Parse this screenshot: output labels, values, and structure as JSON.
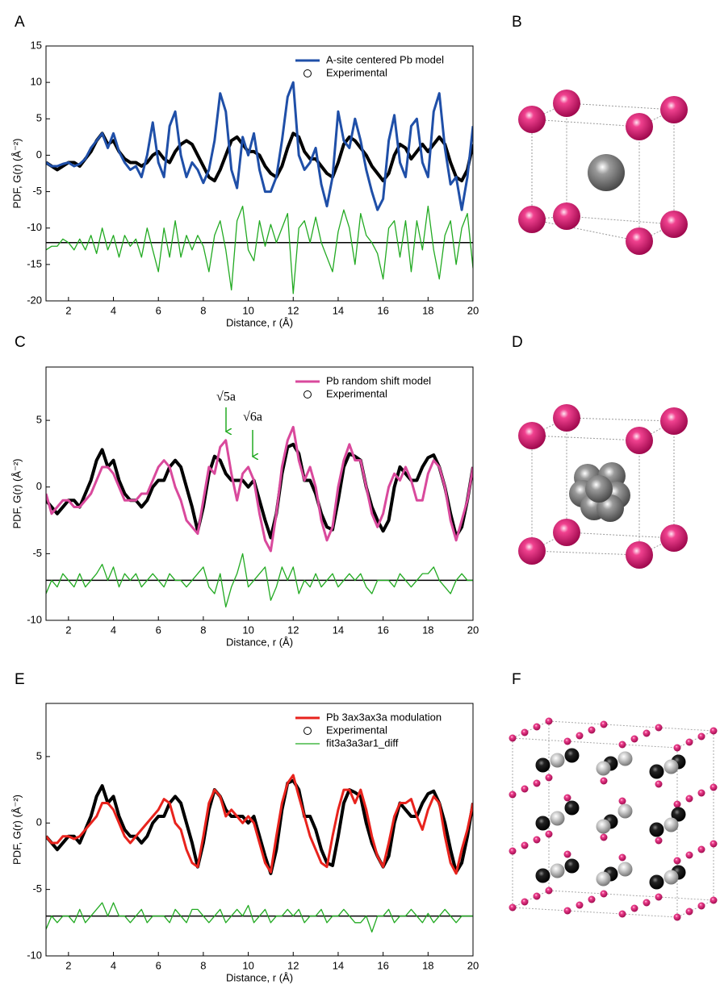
{
  "chart_data": [
    {
      "type": "line",
      "panel_label": "A",
      "y_label": "PDF, G(r) (Å⁻²)",
      "x_label": "Distance, r (Å)",
      "xlim": [
        1,
        20
      ],
      "xticks": [
        2,
        4,
        6,
        8,
        10,
        12,
        14,
        16,
        18,
        20
      ],
      "ylim": [
        -20,
        15
      ],
      "yticks": [
        -20,
        -15,
        -10,
        -5,
        0,
        5,
        10,
        15
      ],
      "legend": "upper right",
      "hline": -12,
      "x": [
        1,
        1.25,
        1.5,
        1.75,
        2,
        2.25,
        2.5,
        2.75,
        3,
        3.25,
        3.5,
        3.75,
        4,
        4.25,
        4.5,
        4.75,
        5,
        5.25,
        5.5,
        5.75,
        6,
        6.25,
        6.5,
        6.75,
        7,
        7.25,
        7.5,
        7.75,
        8,
        8.25,
        8.5,
        8.75,
        9,
        9.25,
        9.5,
        9.75,
        10,
        10.25,
        10.5,
        10.75,
        11,
        11.25,
        11.5,
        11.75,
        12,
        12.25,
        12.5,
        12.75,
        13,
        13.25,
        13.5,
        13.75,
        14,
        14.25,
        14.5,
        14.75,
        15,
        15.25,
        15.5,
        15.75,
        16,
        16.25,
        16.5,
        16.75,
        17,
        17.25,
        17.5,
        17.75,
        18,
        18.25,
        18.5,
        18.75,
        19,
        19.25,
        19.5,
        19.75,
        20
      ],
      "series": [
        {
          "name": "A-site centered Pb model",
          "color": "#1f4fa8",
          "width": 3,
          "values": [
            -1,
            -1.5,
            -1.5,
            -1.2,
            -1,
            -1.5,
            -1.2,
            -0.5,
            1,
            2,
            3,
            1,
            3,
            0.5,
            -1,
            -2,
            -1.5,
            -3,
            0,
            4.5,
            -1,
            -3,
            4,
            6,
            0,
            -3,
            -1,
            -2,
            -3.8,
            -2,
            2,
            8.5,
            6,
            -2,
            -4.5,
            2.5,
            0,
            3,
            -2,
            -5,
            -5,
            -3,
            2,
            8,
            10,
            0,
            -2,
            -1,
            1,
            -4,
            -7,
            -3,
            6,
            2,
            1,
            5,
            2,
            -2,
            -5,
            -7.5,
            -6,
            2,
            5.5,
            -1,
            -3,
            4,
            5,
            -1,
            -3,
            6,
            8.5,
            1,
            -4,
            -3,
            -7.5,
            -3,
            4
          ]
        },
        {
          "name": "Experimental",
          "color": "#000000",
          "width": 4,
          "marker": "circle",
          "values": [
            -1,
            -1.5,
            -2,
            -1.5,
            -1,
            -1,
            -1.5,
            -0.5,
            0.5,
            2,
            3,
            1.5,
            2,
            0.5,
            -0.5,
            -1,
            -1,
            -1.5,
            -1,
            0,
            0.5,
            -0.5,
            -1,
            0.5,
            1.5,
            2,
            1.5,
            0,
            -1.5,
            -3,
            -3.5,
            -2,
            0,
            2,
            2.5,
            1.5,
            0.5,
            0.5,
            0,
            -1.5,
            -2.5,
            -3,
            -1.5,
            1,
            3,
            2.5,
            0.5,
            -0.5,
            -0.5,
            -1.5,
            -2.5,
            -3,
            -1,
            1.5,
            2.5,
            2,
            1,
            0,
            -1.5,
            -2.5,
            -3.5,
            -2.5,
            0,
            1.5,
            1,
            -0.5,
            0.5,
            1.5,
            0.5,
            1.5,
            2.5,
            1.5,
            -1,
            -3,
            -3.5,
            -2,
            1.5
          ]
        },
        {
          "color": "#22aa22",
          "width": 1.3,
          "values": [
            -13,
            -12.5,
            -12.5,
            -11.5,
            -12,
            -13,
            -11.5,
            -13,
            -11,
            -13.5,
            -10,
            -13,
            -11,
            -14,
            -11,
            -12.5,
            -11.5,
            -14,
            -10,
            -13,
            -16,
            -10,
            -14,
            -9,
            -14,
            -11,
            -13,
            -11,
            -12.5,
            -16,
            -11,
            -9,
            -13,
            -18.5,
            -9,
            -7,
            -13,
            -14.5,
            -9,
            -12.5,
            -9.5,
            -12,
            -10,
            -8,
            -19,
            -10,
            -9,
            -12,
            -8.5,
            -12,
            -14,
            -16,
            -10.5,
            -7.5,
            -10,
            -15,
            -8,
            -11,
            -12,
            -13.5,
            -17,
            -10,
            -9,
            -14,
            -9,
            -16,
            -9,
            -13,
            -7,
            -13,
            -17,
            -11,
            -9,
            -15,
            -10,
            -8,
            -15.5
          ]
        }
      ]
    },
    {
      "type": "line",
      "panel_label": "C",
      "y_label": "PDF, G(r) (Å⁻²)",
      "x_label": "Distance, r (Å)",
      "xlim": [
        1,
        20
      ],
      "xticks": [
        2,
        4,
        6,
        8,
        10,
        12,
        14,
        16,
        18,
        20
      ],
      "ylim": [
        -10,
        9
      ],
      "yticks": [
        -10,
        -5,
        0,
        5
      ],
      "legend": "upper right",
      "hline": -7,
      "annotations": [
        {
          "text": "√5a"
        },
        {
          "text": "√6a"
        }
      ],
      "x": [
        1,
        1.25,
        1.5,
        1.75,
        2,
        2.25,
        2.5,
        2.75,
        3,
        3.25,
        3.5,
        3.75,
        4,
        4.25,
        4.5,
        4.75,
        5,
        5.25,
        5.5,
        5.75,
        6,
        6.25,
        6.5,
        6.75,
        7,
        7.25,
        7.5,
        7.75,
        8,
        8.25,
        8.5,
        8.75,
        9,
        9.25,
        9.5,
        9.75,
        10,
        10.25,
        10.5,
        10.75,
        11,
        11.25,
        11.5,
        11.75,
        12,
        12.25,
        12.5,
        12.75,
        13,
        13.25,
        13.5,
        13.75,
        14,
        14.25,
        14.5,
        14.75,
        15,
        15.25,
        15.5,
        15.75,
        16,
        16.25,
        16.5,
        16.75,
        17,
        17.25,
        17.5,
        17.75,
        18,
        18.25,
        18.5,
        18.75,
        19,
        19.25,
        19.5,
        19.75,
        20
      ],
      "series": [
        {
          "name": "Pb random shift model",
          "color": "#d9499c",
          "width": 3,
          "values": [
            -0.5,
            -2,
            -1.5,
            -1,
            -1,
            -1.5,
            -1.5,
            -1,
            -0.5,
            0.5,
            1.5,
            1.5,
            1,
            0,
            -1,
            -1,
            -1,
            -0.5,
            -0.5,
            0.5,
            1.5,
            2,
            1.5,
            0,
            -1,
            -2.5,
            -3,
            -3.5,
            -1,
            1.5,
            1,
            3,
            3.5,
            1,
            -1,
            1,
            1.5,
            0.5,
            -2,
            -4,
            -4.8,
            -2,
            1.5,
            3.5,
            4.5,
            2,
            0.5,
            1.5,
            0,
            -2.5,
            -4,
            -3,
            0,
            2,
            3.2,
            2,
            2,
            0,
            -2,
            -3,
            -2,
            0,
            1,
            0.5,
            1.5,
            0.5,
            -1,
            -1,
            1,
            2,
            1.5,
            0,
            -2.5,
            -4,
            -2.5,
            -1,
            1.5
          ]
        },
        {
          "name": "Experimental",
          "color": "#000000",
          "width": 4,
          "marker": "circle",
          "values": [
            -1,
            -1.5,
            -2,
            -1.5,
            -1,
            -1,
            -1.5,
            -0.5,
            0.5,
            2,
            2.8,
            1.5,
            2,
            0.5,
            -0.5,
            -1,
            -1,
            -1.5,
            -1,
            0,
            0.5,
            0.5,
            1.5,
            2,
            1.5,
            0,
            -1.5,
            -3.3,
            -1.5,
            1,
            2.3,
            2,
            1,
            0.5,
            0.5,
            0.5,
            0,
            0.5,
            -1,
            -2.5,
            -3.8,
            -2,
            1,
            3,
            3.2,
            2.5,
            0.5,
            0.5,
            -0.5,
            -2,
            -3,
            -3.2,
            -1,
            1.5,
            2.5,
            2.3,
            2,
            0,
            -1.5,
            -2.5,
            -3.3,
            -2.5,
            0,
            1.5,
            1,
            0.5,
            0.5,
            1.5,
            2.2,
            2.4,
            1.5,
            0,
            -2,
            -3.7,
            -3,
            -1,
            1.5
          ]
        },
        {
          "color": "#22aa22",
          "width": 1.3,
          "values": [
            -8,
            -7,
            -7.5,
            -6.5,
            -7,
            -7.5,
            -6.5,
            -7.5,
            -7,
            -6.5,
            -5.8,
            -7,
            -6,
            -7.5,
            -6.5,
            -7,
            -6.5,
            -7.5,
            -7,
            -6.5,
            -7,
            -7.5,
            -6.5,
            -7,
            -7,
            -7.5,
            -7,
            -6.5,
            -6,
            -7.5,
            -8,
            -6.5,
            -9,
            -7.5,
            -6.5,
            -5,
            -7.5,
            -7,
            -6.5,
            -6,
            -8.5,
            -7.5,
            -6,
            -7,
            -6,
            -8,
            -7,
            -7.5,
            -6.5,
            -7.5,
            -7,
            -6.5,
            -7.5,
            -7,
            -6.5,
            -7,
            -6.5,
            -7.5,
            -8,
            -7,
            -7,
            -7,
            -7.5,
            -6.5,
            -7,
            -7.5,
            -7,
            -6.5,
            -6.5,
            -6,
            -7,
            -7.5,
            -8,
            -7,
            -6.5,
            -7,
            -7
          ]
        }
      ]
    },
    {
      "type": "line",
      "panel_label": "E",
      "y_label": "PDF, G(r) (Å⁻²)",
      "x_label": "Distance, r (Å)",
      "xlim": [
        1,
        20
      ],
      "xticks": [
        2,
        4,
        6,
        8,
        10,
        12,
        14,
        16,
        18,
        20
      ],
      "ylim": [
        -10,
        9
      ],
      "yticks": [
        -10,
        -5,
        0,
        5
      ],
      "legend": "upper right",
      "hline": -7,
      "x": [
        1,
        1.25,
        1.5,
        1.75,
        2,
        2.25,
        2.5,
        2.75,
        3,
        3.25,
        3.5,
        3.75,
        4,
        4.25,
        4.5,
        4.75,
        5,
        5.25,
        5.5,
        5.75,
        6,
        6.25,
        6.5,
        6.75,
        7,
        7.25,
        7.5,
        7.75,
        8,
        8.25,
        8.5,
        8.75,
        9,
        9.25,
        9.5,
        9.75,
        10,
        10.25,
        10.5,
        10.75,
        11,
        11.25,
        11.5,
        11.75,
        12,
        12.25,
        12.5,
        12.75,
        13,
        13.25,
        13.5,
        13.75,
        14,
        14.25,
        14.5,
        14.75,
        15,
        15.25,
        15.5,
        15.75,
        16,
        16.25,
        16.5,
        16.75,
        17,
        17.25,
        17.5,
        17.75,
        18,
        18.25,
        18.5,
        18.75,
        19,
        19.25,
        19.5,
        19.75,
        20
      ],
      "series": [
        {
          "name": "Pb 3ax3ax3a modulation",
          "color": "#e8231d",
          "width": 3,
          "values": [
            -1,
            -1.5,
            -1.5,
            -1,
            -1,
            -1.2,
            -1,
            -0.5,
            0,
            0.5,
            1.5,
            1.5,
            1,
            0,
            -1,
            -1.5,
            -1,
            -0.5,
            0,
            0.5,
            1,
            1.8,
            1.5,
            0,
            -0.5,
            -2,
            -3,
            -3.3,
            -1,
            1.5,
            2.5,
            2,
            0.5,
            1,
            0.5,
            0,
            0.5,
            0,
            -1.5,
            -3,
            -3.7,
            -1,
            1.5,
            3,
            3.6,
            2,
            0.5,
            -1,
            -2,
            -3,
            -3.3,
            -1,
            1,
            2.5,
            2.5,
            1.5,
            2.5,
            1,
            -1,
            -2.5,
            -3.3,
            -1.5,
            0.5,
            1.5,
            1.5,
            1.8,
            0.5,
            -0.5,
            1,
            2,
            1.5,
            -1,
            -3,
            -3.8,
            -2,
            -0.5,
            1.5
          ]
        },
        {
          "name": "Experimental",
          "color": "#000000",
          "width": 4,
          "marker": "circle",
          "values": [
            -1,
            -1.5,
            -2,
            -1.5,
            -1,
            -1,
            -1.5,
            -0.5,
            0.5,
            2,
            2.8,
            1.5,
            2,
            0.5,
            -0.5,
            -1,
            -1,
            -1.5,
            -1,
            0,
            0.5,
            0.5,
            1.5,
            2,
            1.5,
            0,
            -1.5,
            -3.3,
            -1.5,
            1,
            2.5,
            2,
            1,
            0.5,
            0.5,
            0.5,
            0,
            0.5,
            -1,
            -2.5,
            -3.8,
            -2,
            1,
            3,
            3.2,
            2.5,
            0.5,
            0.5,
            -0.5,
            -2,
            -3,
            -3.2,
            -1,
            1.5,
            2.5,
            2.3,
            2,
            0,
            -1.5,
            -2.5,
            -3.3,
            -2.5,
            0,
            1.5,
            1,
            0.5,
            0.5,
            1.5,
            2.2,
            2.4,
            1.5,
            0,
            -2,
            -3.7,
            -3,
            -1,
            1.5
          ]
        },
        {
          "name": "fit3a3a3ar1_diff",
          "color": "#22aa22",
          "width": 1.3,
          "values": [
            -8,
            -7,
            -7.5,
            -7,
            -7,
            -7.5,
            -6.5,
            -7.5,
            -7,
            -6.5,
            -6,
            -7,
            -6,
            -7,
            -7,
            -7.5,
            -7,
            -6.5,
            -7.5,
            -7,
            -7,
            -7,
            -7.5,
            -6.5,
            -7,
            -7.5,
            -6.5,
            -6.5,
            -7,
            -7.5,
            -7,
            -6.5,
            -7.5,
            -7,
            -6.5,
            -7,
            -6.2,
            -7.5,
            -7,
            -6.5,
            -7.5,
            -7,
            -7,
            -6.5,
            -7,
            -6.5,
            -7.5,
            -7,
            -7,
            -6.5,
            -7.5,
            -7,
            -7,
            -6.5,
            -7,
            -7.5,
            -7.5,
            -7,
            -8.2,
            -7,
            -7,
            -6.5,
            -7.5,
            -7,
            -7,
            -6.5,
            -7,
            -7.5,
            -6.8,
            -7.5,
            -7,
            -6.5,
            -7,
            -7.5,
            -7,
            -7,
            -7
          ]
        }
      ]
    }
  ],
  "diagrams": [
    {
      "label": "B"
    },
    {
      "label": "D"
    },
    {
      "label": "F"
    }
  ]
}
